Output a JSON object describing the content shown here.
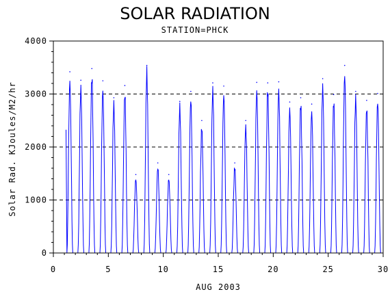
{
  "chart_data": {
    "type": "line",
    "title": "SOLAR RADIATION",
    "subtitle": "STATION=PHCK",
    "xlabel": "AUG 2003",
    "ylabel": "Solar Rad. KJoules/M2/hr",
    "xlim": [
      0,
      30
    ],
    "ylim": [
      0,
      4000
    ],
    "xticks": [
      0,
      5,
      10,
      15,
      20,
      25,
      30
    ],
    "yticks": [
      0,
      1000,
      2000,
      3000,
      4000
    ],
    "grid": "horizontal dashed",
    "line_color": "#0000ff",
    "daily_peaks": [
      {
        "day": 1,
        "peak": 3420
      },
      {
        "day": 2,
        "peak": 3260
      },
      {
        "day": 3,
        "peak": 3480
      },
      {
        "day": 4,
        "peak": 3250
      },
      {
        "day": 5,
        "peak": 2930
      },
      {
        "day": 6,
        "peak": 3160
      },
      {
        "day": 7,
        "peak": 1480
      },
      {
        "day": 8,
        "peak": 3540
      },
      {
        "day": 9,
        "peak": 1700
      },
      {
        "day": 10,
        "peak": 1480
      },
      {
        "day": 11,
        "peak": 2860
      },
      {
        "day": 12,
        "peak": 3050
      },
      {
        "day": 13,
        "peak": 2500
      },
      {
        "day": 14,
        "peak": 3210
      },
      {
        "day": 15,
        "peak": 3150
      },
      {
        "day": 16,
        "peak": 1700
      },
      {
        "day": 17,
        "peak": 2500
      },
      {
        "day": 18,
        "peak": 3220
      },
      {
        "day": 19,
        "peak": 3210
      },
      {
        "day": 20,
        "peak": 3230
      },
      {
        "day": 21,
        "peak": 2850
      },
      {
        "day": 22,
        "peak": 2930
      },
      {
        "day": 23,
        "peak": 2810
      },
      {
        "day": 24,
        "peak": 3290
      },
      {
        "day": 25,
        "peak": 2990
      },
      {
        "day": 26,
        "peak": 3540
      },
      {
        "day": 27,
        "peak": 3050
      },
      {
        "day": 28,
        "peak": 2880
      },
      {
        "day": 29,
        "peak": 3010
      }
    ]
  }
}
